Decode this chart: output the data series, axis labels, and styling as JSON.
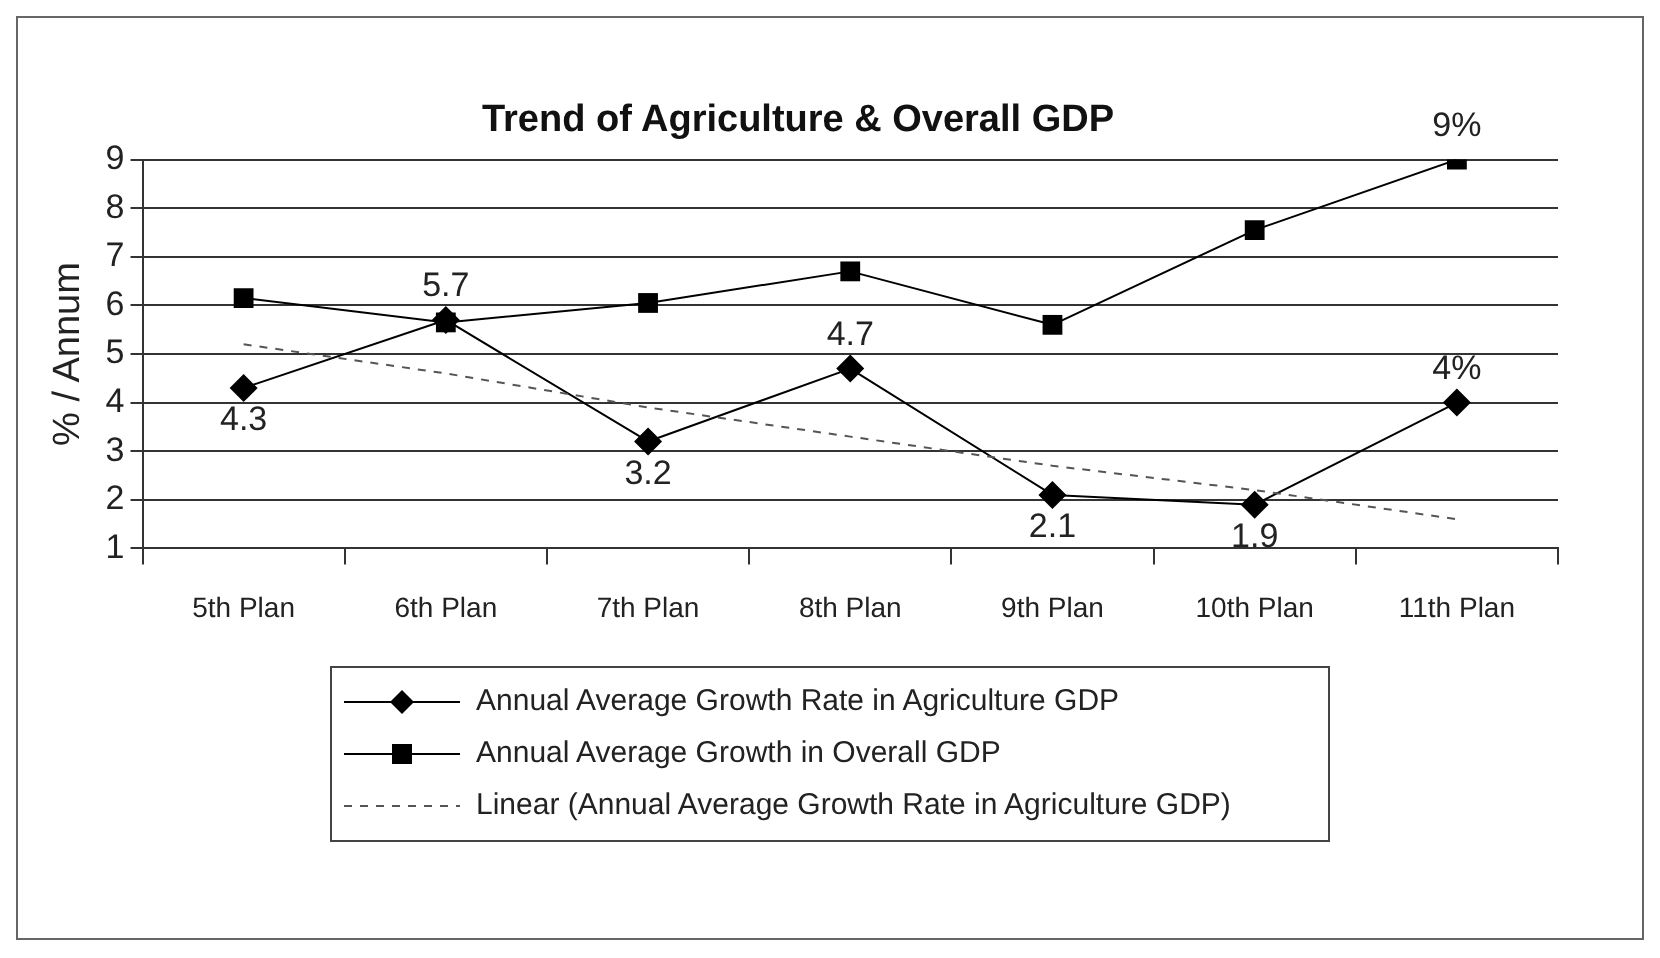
{
  "chart_data": {
    "type": "line",
    "title": "Trend of Agriculture & Overall GDP",
    "ylabel": "% / Annum",
    "categories": [
      "5th Plan",
      "6th Plan",
      "7th Plan",
      "8th Plan",
      "9th Plan",
      "10th Plan",
      "11th Plan"
    ],
    "series": [
      {
        "name": "Annual Average Growth Rate in Agriculture GDP",
        "color": "#000000",
        "marker": "diamond",
        "values": [
          4.3,
          5.7,
          3.2,
          4.7,
          2.1,
          1.9,
          4
        ],
        "value_labels": [
          "4.3",
          "5.7",
          "3.2",
          "4.7",
          "2.1",
          "1.9",
          "4%"
        ]
      },
      {
        "name": "Annual Average Growth in Overall GDP",
        "color": "#000000",
        "marker": "square",
        "values": [
          6.15,
          5.65,
          6.05,
          6.7,
          5.6,
          7.55,
          9
        ],
        "value_labels": [
          null,
          null,
          null,
          null,
          null,
          null,
          "9%"
        ]
      },
      {
        "name": "Linear (Annual Average Growth Rate in Agriculture GDP)",
        "color": "#555555",
        "marker": "none",
        "line_style": "dashed",
        "values": [
          5.2,
          4.6,
          3.9,
          3.3,
          2.7,
          2.2,
          1.6
        ]
      }
    ],
    "ylim": [
      1,
      9
    ],
    "yticks": [
      1,
      2,
      3,
      4,
      5,
      6,
      7,
      8,
      9
    ],
    "grid": "y",
    "legend": "bottom"
  }
}
